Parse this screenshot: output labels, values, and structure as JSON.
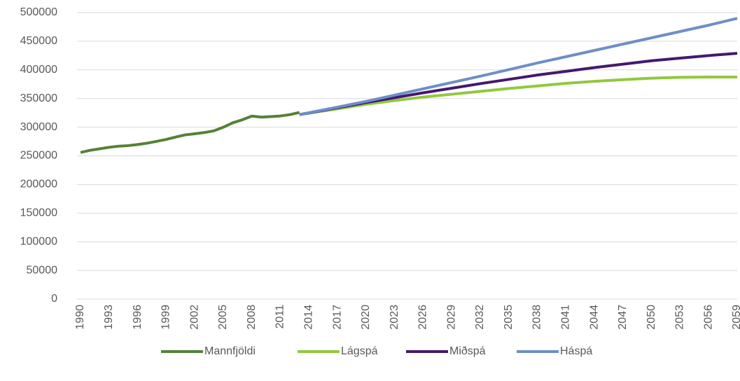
{
  "chart_data": {
    "type": "line",
    "xlim": [
      1990,
      2059
    ],
    "xticks": [
      1990,
      1993,
      1996,
      1999,
      2002,
      2005,
      2008,
      2011,
      2014,
      2017,
      2020,
      2023,
      2026,
      2029,
      2032,
      2035,
      2038,
      2041,
      2044,
      2047,
      2050,
      2053,
      2056,
      2059
    ],
    "ylim": [
      0,
      500000
    ],
    "yticks": [
      0,
      50000,
      100000,
      150000,
      200000,
      250000,
      300000,
      350000,
      400000,
      450000,
      500000
    ],
    "grid": true,
    "legend": "bottom",
    "series": [
      {
        "name": "Mannfjöldi",
        "color": "#548235",
        "x": [
          1990,
          1991,
          1992,
          1993,
          1994,
          1995,
          1996,
          1997,
          1998,
          1999,
          2000,
          2001,
          2002,
          2003,
          2004,
          2005,
          2006,
          2007,
          2008,
          2009,
          2010,
          2011,
          2012,
          2013
        ],
        "values": [
          255900,
          259600,
          262200,
          264900,
          266800,
          267800,
          269700,
          272100,
          275300,
          278700,
          282800,
          286600,
          288500,
          290600,
          293600,
          299900,
          307700,
          312900,
          319400,
          317600,
          318500,
          319600,
          321900,
          325700
        ]
      },
      {
        "name": "Lágspá",
        "color": "#92c83e",
        "x": [
          2013,
          2017,
          2020,
          2023,
          2026,
          2029,
          2032,
          2035,
          2038,
          2041,
          2044,
          2047,
          2050,
          2053,
          2056,
          2059
        ],
        "values": [
          322000,
          332000,
          340000,
          346500,
          352500,
          357500,
          362500,
          367500,
          372000,
          376500,
          380000,
          383000,
          385500,
          387000,
          387500,
          387500
        ]
      },
      {
        "name": "Miðspá",
        "color": "#44196f",
        "x": [
          2013,
          2017,
          2020,
          2023,
          2026,
          2029,
          2032,
          2035,
          2038,
          2041,
          2044,
          2047,
          2050,
          2053,
          2056,
          2059
        ],
        "values": [
          322000,
          334000,
          343000,
          351500,
          360000,
          368000,
          376000,
          383500,
          391000,
          397500,
          404000,
          410000,
          416000,
          420500,
          425000,
          429000
        ]
      },
      {
        "name": "Háspá",
        "color": "#6d8fc8",
        "x": [
          2013,
          2017,
          2020,
          2023,
          2026,
          2029,
          2032,
          2035,
          2038,
          2041,
          2044,
          2047,
          2050,
          2053,
          2056,
          2059
        ],
        "values": [
          322000,
          335000,
          345000,
          356000,
          367000,
          378000,
          389000,
          400500,
          412000,
          423000,
          434000,
          445000,
          456000,
          467000,
          478000,
          490000
        ]
      }
    ]
  }
}
